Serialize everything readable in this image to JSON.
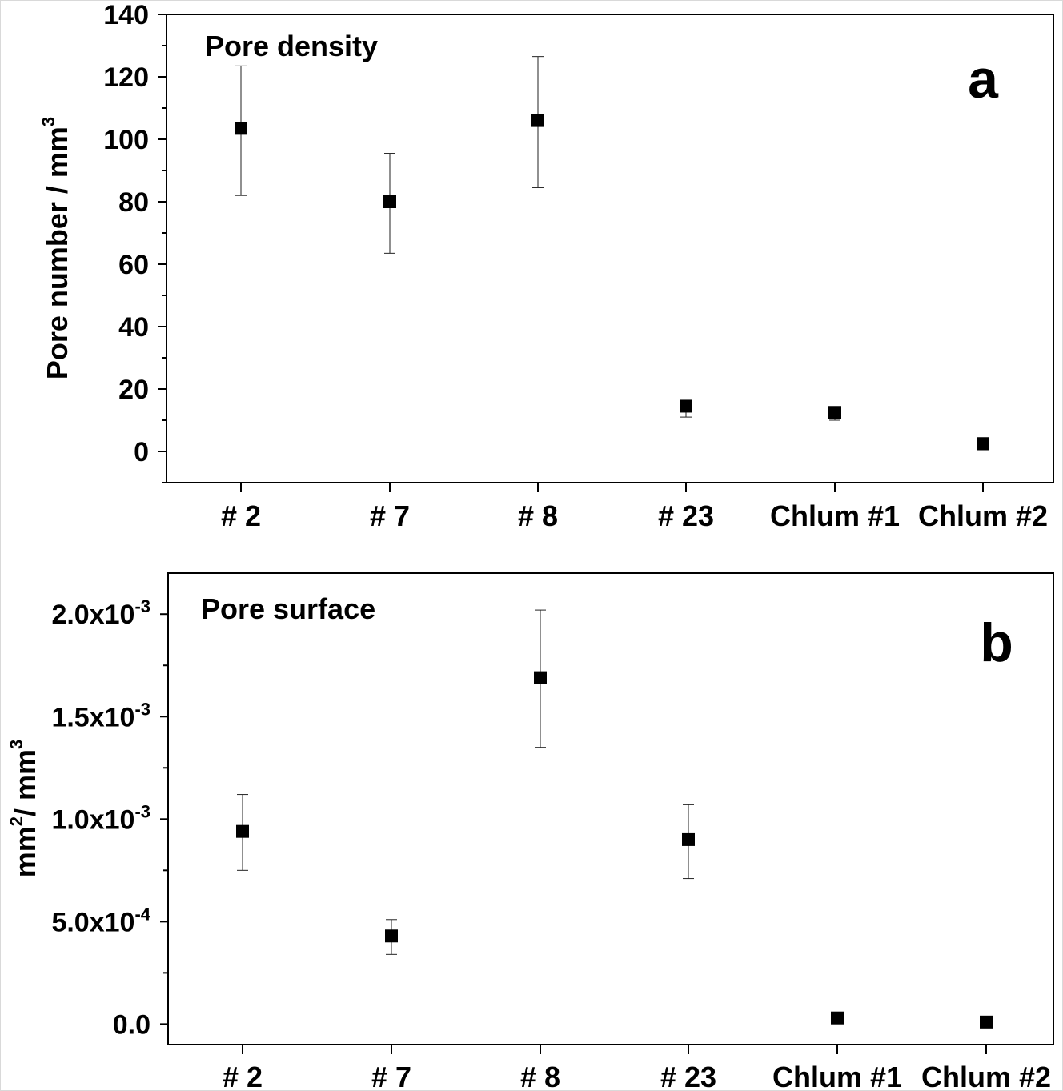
{
  "chart_data": [
    {
      "type": "scatter",
      "panel": "a",
      "title": "Pore density",
      "ylabel_main": "Pore number / mm",
      "ylabel_sup": "3",
      "xlabel": "",
      "categories": [
        "# 2",
        "# 7",
        "# 8",
        "# 23",
        "Chlum #1",
        "Chlum #2"
      ],
      "values": [
        103.5,
        80,
        106,
        14.5,
        12.5,
        2.5
      ],
      "err_low": [
        82,
        63.5,
        84.5,
        11,
        10,
        0.5
      ],
      "err_high": [
        123.5,
        95.5,
        126.5,
        15.5,
        14,
        4
      ],
      "ylim": [
        -10,
        140
      ],
      "yticks": [
        0,
        20,
        40,
        60,
        80,
        100,
        120,
        140
      ],
      "ytick_labels": [
        "0",
        "20",
        "40",
        "60",
        "80",
        "100",
        "120",
        "140"
      ]
    },
    {
      "type": "scatter",
      "panel": "b",
      "title": "Pore surface",
      "ylabel_main": "mm",
      "ylabel_sup1": "2",
      "ylabel_mid": "/ mm",
      "ylabel_sup2": "3",
      "xlabel": "",
      "categories": [
        "# 2",
        "# 7",
        "# 8",
        "# 23",
        "Chlum #1",
        "Chlum #2"
      ],
      "values": [
        0.00094,
        0.00043,
        0.00169,
        0.0009,
        3e-05,
        1e-05
      ],
      "err_low": [
        0.00075,
        0.00034,
        0.00135,
        0.00071,
        1e-05,
        -1e-05
      ],
      "err_high": [
        0.00112,
        0.00051,
        0.00202,
        0.00107,
        5e-05,
        3e-05
      ],
      "ylim": [
        -0.0001,
        0.0022
      ],
      "yticks": [
        0,
        0.0005,
        0.001,
        0.0015,
        0.002
      ],
      "ytick_base": [
        "0.0",
        "5.0x10",
        "1.0x10",
        "1.5x10",
        "2.0x10"
      ],
      "ytick_exp": [
        "",
        "-4",
        "-3",
        "-3",
        "-3"
      ]
    }
  ]
}
